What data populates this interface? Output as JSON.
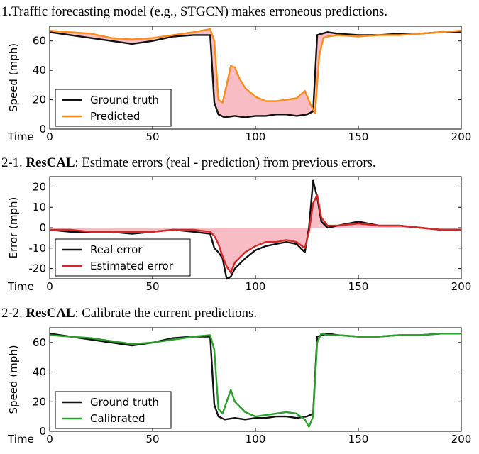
{
  "panels": [
    {
      "title_prefix": "1.Traffic forecasting model (e.g., STGCN) makes erroneous predictions.",
      "title_bold": "",
      "title_rest": ""
    },
    {
      "title_prefix": "2-1. ",
      "title_bold": "ResCAL",
      "title_rest": ": Estimate errors (real - prediction) from previous errors."
    },
    {
      "title_prefix": "2-2. ",
      "title_bold": "ResCAL",
      "title_rest": ": Calibrate the current predictions."
    }
  ],
  "colors": {
    "ground_truth": "#111111",
    "predicted": "#ff8c1a",
    "estimated_error": "#d62728",
    "calibrated": "#2ca02c",
    "fill": "#f4a6b0"
  },
  "chart_data": [
    {
      "type": "line",
      "xlabel": "Time",
      "ylabel": "Speed (mph)",
      "xlim": [
        0,
        200
      ],
      "ylim": [
        0,
        70
      ],
      "xticks": [
        0,
        50,
        100,
        150,
        200
      ],
      "yticks": [
        0,
        20,
        40,
        60
      ],
      "legend_position": "lower-left",
      "fill_between": "series",
      "series": [
        {
          "name": "Ground truth",
          "color": "#111111",
          "points": [
            [
              0,
              66
            ],
            [
              10,
              64
            ],
            [
              20,
              62
            ],
            [
              30,
              60
            ],
            [
              40,
              58
            ],
            [
              50,
              60
            ],
            [
              60,
              63
            ],
            [
              70,
              64
            ],
            [
              78,
              64
            ],
            [
              80,
              18
            ],
            [
              82,
              10
            ],
            [
              85,
              8
            ],
            [
              90,
              9
            ],
            [
              95,
              8
            ],
            [
              100,
              9
            ],
            [
              105,
              9
            ],
            [
              110,
              10
            ],
            [
              115,
              10
            ],
            [
              120,
              9
            ],
            [
              125,
              10
            ],
            [
              128,
              12
            ],
            [
              130,
              64
            ],
            [
              135,
              66
            ],
            [
              140,
              65
            ],
            [
              150,
              64
            ],
            [
              160,
              64
            ],
            [
              170,
              65
            ],
            [
              180,
              65
            ],
            [
              190,
              66
            ],
            [
              200,
              66
            ]
          ]
        },
        {
          "name": "Predicted",
          "color": "#ff8c1a",
          "points": [
            [
              0,
              67
            ],
            [
              10,
              66
            ],
            [
              20,
              65
            ],
            [
              30,
              62
            ],
            [
              40,
              61
            ],
            [
              50,
              62
            ],
            [
              60,
              64
            ],
            [
              70,
              66
            ],
            [
              78,
              68
            ],
            [
              80,
              60
            ],
            [
              82,
              20
            ],
            [
              84,
              18
            ],
            [
              86,
              30
            ],
            [
              88,
              43
            ],
            [
              90,
              42
            ],
            [
              92,
              35
            ],
            [
              95,
              28
            ],
            [
              100,
              22
            ],
            [
              105,
              19
            ],
            [
              110,
              19
            ],
            [
              115,
              20
            ],
            [
              120,
              21
            ],
            [
              124,
              26
            ],
            [
              127,
              16
            ],
            [
              129,
              11
            ],
            [
              131,
              50
            ],
            [
              133,
              62
            ],
            [
              135,
              63
            ],
            [
              140,
              64
            ],
            [
              150,
              63
            ],
            [
              160,
              64
            ],
            [
              170,
              64
            ],
            [
              180,
              65
            ],
            [
              190,
              66
            ],
            [
              200,
              67
            ]
          ]
        }
      ]
    },
    {
      "type": "line",
      "xlabel": "Time",
      "ylabel": "Error (mph)",
      "xlim": [
        0,
        200
      ],
      "ylim": [
        -25,
        25
      ],
      "xticks": [
        0,
        50,
        100,
        150,
        200
      ],
      "yticks": [
        -20,
        -10,
        0,
        10,
        20
      ],
      "legend_position": "lower-left",
      "fill_between": "zero",
      "series": [
        {
          "name": "Real error",
          "color": "#111111",
          "points": [
            [
              0,
              -1
            ],
            [
              10,
              -2
            ],
            [
              20,
              -2
            ],
            [
              30,
              -2
            ],
            [
              40,
              -3
            ],
            [
              50,
              -2
            ],
            [
              60,
              -1
            ],
            [
              70,
              -2
            ],
            [
              78,
              -3
            ],
            [
              80,
              -10
            ],
            [
              82,
              -12
            ],
            [
              84,
              -15
            ],
            [
              86,
              -25
            ],
            [
              88,
              -24
            ],
            [
              90,
              -20
            ],
            [
              95,
              -15
            ],
            [
              100,
              -11
            ],
            [
              105,
              -9
            ],
            [
              110,
              -8
            ],
            [
              115,
              -7
            ],
            [
              120,
              -8
            ],
            [
              124,
              -12
            ],
            [
              126,
              0
            ],
            [
              128,
              23
            ],
            [
              130,
              15
            ],
            [
              132,
              3
            ],
            [
              135,
              0
            ],
            [
              140,
              1
            ],
            [
              150,
              3
            ],
            [
              160,
              1
            ],
            [
              170,
              1
            ],
            [
              180,
              0
            ],
            [
              190,
              -1
            ],
            [
              200,
              -1
            ]
          ]
        },
        {
          "name": "Estimated error",
          "color": "#d62728",
          "points": [
            [
              0,
              -1
            ],
            [
              10,
              -1
            ],
            [
              20,
              -2
            ],
            [
              30,
              -2
            ],
            [
              40,
              -2
            ],
            [
              50,
              -2
            ],
            [
              60,
              -1
            ],
            [
              70,
              -1
            ],
            [
              78,
              -2
            ],
            [
              80,
              -4
            ],
            [
              82,
              -8
            ],
            [
              84,
              -14
            ],
            [
              86,
              -19
            ],
            [
              88,
              -22
            ],
            [
              90,
              -17
            ],
            [
              95,
              -12
            ],
            [
              100,
              -9
            ],
            [
              105,
              -7
            ],
            [
              110,
              -7
            ],
            [
              115,
              -6
            ],
            [
              120,
              -7
            ],
            [
              124,
              -10
            ],
            [
              126,
              -2
            ],
            [
              128,
              12
            ],
            [
              130,
              16
            ],
            [
              132,
              5
            ],
            [
              135,
              1
            ],
            [
              140,
              1
            ],
            [
              150,
              2
            ],
            [
              160,
              1
            ],
            [
              170,
              1
            ],
            [
              180,
              0
            ],
            [
              190,
              -1
            ],
            [
              200,
              -1
            ]
          ]
        }
      ]
    },
    {
      "type": "line",
      "xlabel": "Time",
      "ylabel": "Speed (mph)",
      "xlim": [
        0,
        200
      ],
      "ylim": [
        0,
        70
      ],
      "xticks": [
        0,
        50,
        100,
        150,
        200
      ],
      "yticks": [
        0,
        20,
        40,
        60
      ],
      "legend_position": "lower-left",
      "fill_between": "none",
      "series": [
        {
          "name": "Ground truth",
          "color": "#111111",
          "points": [
            [
              0,
              66
            ],
            [
              10,
              64
            ],
            [
              20,
              62
            ],
            [
              30,
              60
            ],
            [
              40,
              58
            ],
            [
              50,
              60
            ],
            [
              60,
              63
            ],
            [
              70,
              64
            ],
            [
              78,
              64
            ],
            [
              80,
              18
            ],
            [
              82,
              10
            ],
            [
              85,
              8
            ],
            [
              90,
              9
            ],
            [
              95,
              8
            ],
            [
              100,
              9
            ],
            [
              105,
              9
            ],
            [
              110,
              10
            ],
            [
              115,
              10
            ],
            [
              120,
              9
            ],
            [
              125,
              10
            ],
            [
              128,
              12
            ],
            [
              130,
              64
            ],
            [
              135,
              66
            ],
            [
              140,
              65
            ],
            [
              150,
              64
            ],
            [
              160,
              64
            ],
            [
              170,
              65
            ],
            [
              180,
              65
            ],
            [
              190,
              66
            ],
            [
              200,
              66
            ]
          ]
        },
        {
          "name": "Calibrated",
          "color": "#2ca02c",
          "points": [
            [
              0,
              65
            ],
            [
              10,
              64
            ],
            [
              20,
              63
            ],
            [
              30,
              61
            ],
            [
              40,
              59
            ],
            [
              50,
              60
            ],
            [
              60,
              62
            ],
            [
              70,
              64
            ],
            [
              78,
              65
            ],
            [
              80,
              55
            ],
            [
              82,
              15
            ],
            [
              84,
              12
            ],
            [
              86,
              20
            ],
            [
              88,
              28
            ],
            [
              90,
              20
            ],
            [
              95,
              13
            ],
            [
              100,
              10
            ],
            [
              105,
              11
            ],
            [
              110,
              12
            ],
            [
              115,
              13
            ],
            [
              120,
              12
            ],
            [
              124,
              8
            ],
            [
              126,
              3
            ],
            [
              128,
              10
            ],
            [
              130,
              60
            ],
            [
              132,
              66
            ],
            [
              135,
              65
            ],
            [
              140,
              65
            ],
            [
              150,
              64
            ],
            [
              160,
              64
            ],
            [
              170,
              65
            ],
            [
              180,
              65
            ],
            [
              190,
              66
            ],
            [
              200,
              66
            ]
          ]
        }
      ]
    }
  ]
}
